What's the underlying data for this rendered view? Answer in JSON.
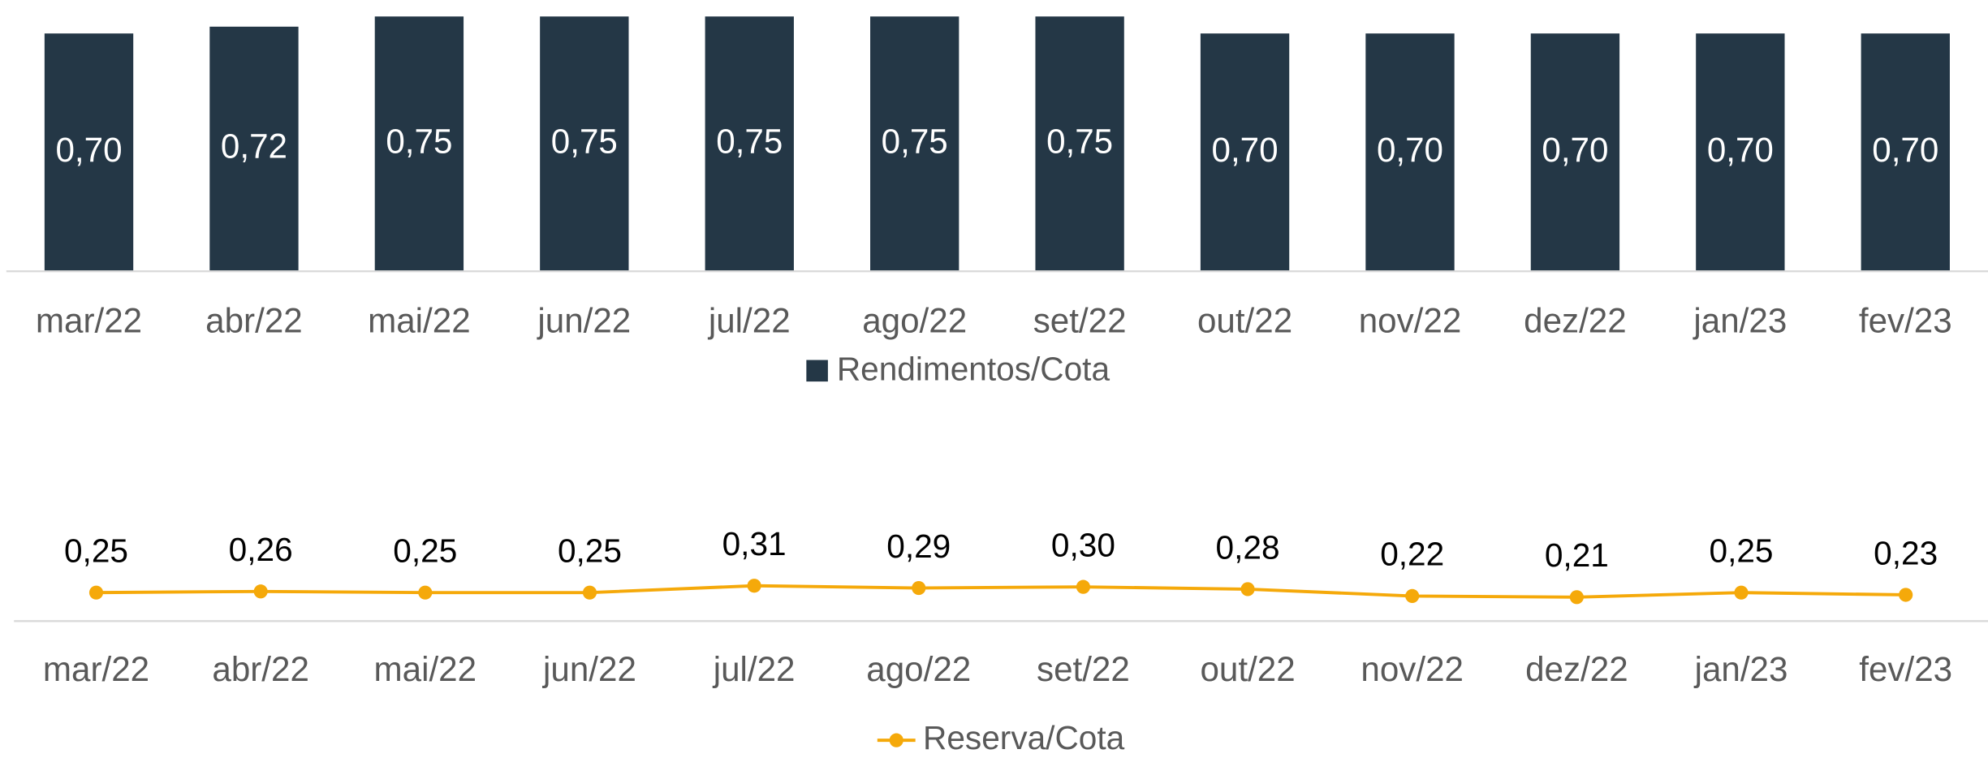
{
  "chart_data": [
    {
      "type": "bar",
      "categories": [
        "mar/22",
        "abr/22",
        "mai/22",
        "jun/22",
        "jul/22",
        "ago/22",
        "set/22",
        "out/22",
        "nov/22",
        "dez/22",
        "jan/23",
        "fev/23"
      ],
      "series": [
        {
          "name": "Rendimentos/Cota",
          "color": "#243746",
          "values": [
            0.7,
            0.72,
            0.75,
            0.75,
            0.75,
            0.75,
            0.75,
            0.7,
            0.7,
            0.7,
            0.7,
            0.7
          ],
          "value_labels": [
            "0,70",
            "0,72",
            "0,75",
            "0,75",
            "0,75",
            "0,75",
            "0,75",
            "0,70",
            "0,70",
            "0,70",
            "0,70",
            "0,70"
          ]
        }
      ],
      "ylim": [
        0,
        0.75
      ],
      "legend": "bottom"
    },
    {
      "type": "line",
      "categories": [
        "mar/22",
        "abr/22",
        "mai/22",
        "jun/22",
        "jul/22",
        "ago/22",
        "set/22",
        "out/22",
        "nov/22",
        "dez/22",
        "jan/23",
        "fev/23"
      ],
      "series": [
        {
          "name": "Reserva/Cota",
          "color": "#f5a90a",
          "values": [
            0.25,
            0.26,
            0.25,
            0.25,
            0.31,
            0.29,
            0.3,
            0.28,
            0.22,
            0.21,
            0.25,
            0.23
          ],
          "value_labels": [
            "0,25",
            "0,26",
            "0,25",
            "0,25",
            "0,31",
            "0,29",
            "0,30",
            "0,28",
            "0,22",
            "0,21",
            "0,25",
            "0,23"
          ]
        }
      ],
      "ylim": [
        0,
        1
      ],
      "legend": "bottom"
    }
  ]
}
